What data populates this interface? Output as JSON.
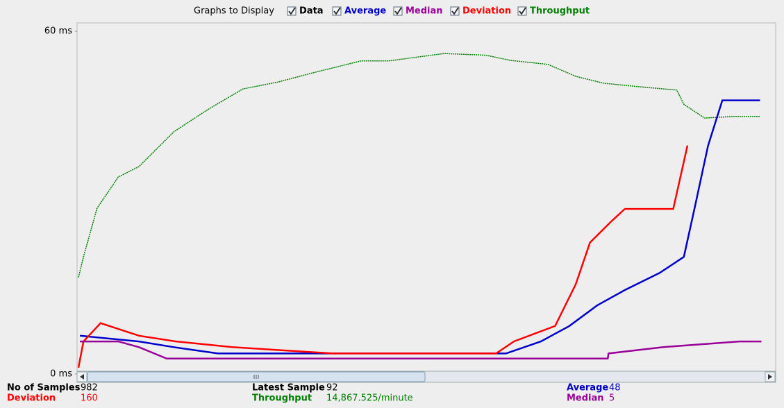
{
  "header": {
    "title": "Graphs to Display"
  },
  "checkboxes": [
    {
      "label": "Data",
      "color": "#000000"
    },
    {
      "label": "Average",
      "color": "#0000cc"
    },
    {
      "label": "Median",
      "color": "#990099"
    },
    {
      "label": "Deviation",
      "color": "#ff0000"
    },
    {
      "label": "Throughput",
      "color": "#008000"
    }
  ],
  "chart_data": {
    "type": "line",
    "xlim": [
      0,
      982
    ],
    "ylim": [
      0,
      60
    ],
    "yticks": [
      {
        "value": 60,
        "label": "60 ms"
      },
      {
        "value": 0,
        "label": "0 ms"
      }
    ],
    "series": [
      {
        "name": "Throughput",
        "color": "#008000",
        "x": [
          2,
          9,
          28,
          58,
          87,
          136,
          184,
          233,
          282,
          331,
          399,
          438,
          516,
          575,
          609,
          662,
          701,
          740,
          789,
          843,
          853,
          882,
          926,
          960
        ],
        "values": [
          16.9,
          20.5,
          29.0,
          34.5,
          36.3,
          42.4,
          46.3,
          49.9,
          51.1,
          52.7,
          54.8,
          54.8,
          56.1,
          55.8,
          54.9,
          54.2,
          52.1,
          50.9,
          50.3,
          49.7,
          47.2,
          44.8,
          45.1,
          45.1
        ]
      },
      {
        "name": "Average",
        "color": "#0000cc",
        "x": [
          4,
          87,
          136,
          198,
          603,
          652,
          692,
          731,
          770,
          819,
          853,
          868,
          887,
          907,
          960
        ],
        "values": [
          6.7,
          5.7,
          4.7,
          3.6,
          3.6,
          5.7,
          8.4,
          12.0,
          14.7,
          17.7,
          20.5,
          29.0,
          40.0,
          47.9,
          47.9
        ]
      },
      {
        "name": "Deviation",
        "color": "#ff0000",
        "x": [
          2,
          9,
          33,
          87,
          139,
          218,
          360,
          589,
          614,
          672,
          701,
          721,
          750,
          770,
          838,
          858
        ],
        "values": [
          1.1,
          5.7,
          8.9,
          6.7,
          5.7,
          4.7,
          3.6,
          3.6,
          5.7,
          8.4,
          15.7,
          23.0,
          26.6,
          28.9,
          28.9,
          40.0
        ]
      },
      {
        "name": "Median",
        "color": "#990099",
        "x": [
          4,
          58,
          87,
          126,
          746,
          747,
          824,
          931,
          962
        ],
        "values": [
          5.7,
          5.7,
          4.7,
          2.7,
          2.7,
          3.6,
          4.7,
          5.7,
          5.7
        ]
      }
    ]
  },
  "stats": [
    {
      "label": "No of Samples",
      "value": "982",
      "color": "#000000"
    },
    {
      "label": "Deviation",
      "value": "160",
      "color": "#ff0000"
    },
    {
      "label": "Latest Sample",
      "value": "92",
      "color": "#000000"
    },
    {
      "label": "Throughput",
      "value": "14,867.525/minute",
      "color": "#008000"
    },
    {
      "label": "Average",
      "value": "48",
      "color": "#0000cc"
    },
    {
      "label": "Median",
      "value": "5",
      "color": "#990099"
    }
  ]
}
